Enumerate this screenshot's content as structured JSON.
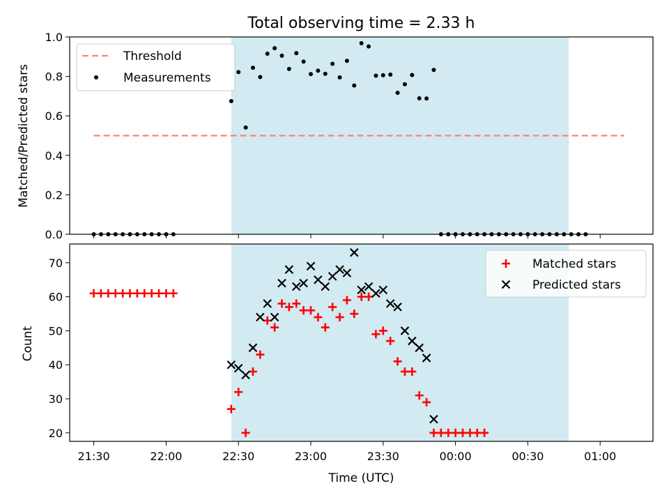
{
  "chart_data": [
    {
      "type": "scatter",
      "title": "Total observing time = 2.33 h",
      "ylabel": "Matched/Predicted stars",
      "xlabel": "",
      "ylim": [
        0,
        1.0
      ],
      "yticks": [
        0.0,
        0.2,
        0.4,
        0.6,
        0.8,
        1.0
      ],
      "ytick_labels": [
        "0.0",
        "0.2",
        "0.4",
        "0.6",
        "0.8",
        "1.0"
      ],
      "x_tick_labels": [
        "21:30",
        "22:00",
        "22:30",
        "23:00",
        "23:30",
        "00:00",
        "00:30",
        "01:00"
      ],
      "shaded_region": {
        "from": "22:27",
        "to": "00:47",
        "color": "#add8e6"
      },
      "legend": {
        "position": "upper left",
        "entries": [
          "Threshold",
          "Measurements"
        ]
      },
      "series": [
        {
          "name": "Threshold",
          "style": "dashed-line",
          "color": "#ff7f7f",
          "x": [
            "21:30",
            "01:10"
          ],
          "values": [
            0.5,
            0.5
          ]
        },
        {
          "name": "Measurements",
          "style": "dot",
          "color": "#000000",
          "x": [
            "21:30",
            "21:33",
            "21:36",
            "21:39",
            "21:42",
            "21:45",
            "21:48",
            "21:51",
            "21:54",
            "21:57",
            "22:00",
            "22:03",
            "22:27",
            "22:30",
            "22:33",
            "22:36",
            "22:39",
            "22:42",
            "22:45",
            "22:48",
            "22:51",
            "22:54",
            "22:57",
            "23:00",
            "23:03",
            "23:06",
            "23:09",
            "23:12",
            "23:15",
            "23:18",
            "23:21",
            "23:24",
            "23:27",
            "23:30",
            "23:33",
            "23:36",
            "23:39",
            "23:42",
            "23:45",
            "23:48",
            "23:51",
            "23:54",
            "23:57",
            "00:00",
            "00:03",
            "00:06",
            "00:09",
            "00:12",
            "00:15",
            "00:18",
            "00:21",
            "00:24",
            "00:27",
            "00:30",
            "00:33",
            "00:36",
            "00:39",
            "00:42",
            "00:45",
            "00:48",
            "00:51",
            "00:54"
          ],
          "values": [
            0,
            0,
            0,
            0,
            0,
            0,
            0,
            0,
            0,
            0,
            0,
            0,
            0.675,
            0.822,
            0.541,
            0.844,
            0.797,
            0.915,
            0.943,
            0.905,
            0.838,
            0.918,
            0.875,
            0.812,
            0.829,
            0.813,
            0.864,
            0.795,
            0.879,
            0.754,
            0.968,
            0.952,
            0.804,
            0.806,
            0.809,
            0.717,
            0.76,
            0.807,
            0.689,
            0.688,
            0.833,
            0,
            0,
            0,
            0,
            0,
            0,
            0,
            0,
            0,
            0,
            0,
            0,
            0,
            0,
            0,
            0,
            0,
            0,
            0,
            0,
            0
          ]
        }
      ]
    },
    {
      "type": "scatter",
      "title": "",
      "ylabel": "Count",
      "xlabel": "Time (UTC)",
      "ylim": [
        17.5,
        75.5
      ],
      "yticks": [
        20,
        30,
        40,
        50,
        60,
        70
      ],
      "ytick_labels": [
        "20",
        "30",
        "40",
        "50",
        "60",
        "70"
      ],
      "x_tick_labels": [
        "21:30",
        "22:00",
        "22:30",
        "23:00",
        "23:30",
        "00:00",
        "00:30",
        "01:00"
      ],
      "shaded_region": {
        "from": "22:27",
        "to": "00:47",
        "color": "#add8e6"
      },
      "legend": {
        "position": "upper right",
        "entries": [
          "Matched stars",
          "Predicted stars"
        ]
      },
      "series": [
        {
          "name": "Matched stars",
          "marker": "+",
          "color": "#ff0000",
          "x": [
            "21:30",
            "21:33",
            "21:36",
            "21:39",
            "21:42",
            "21:45",
            "21:48",
            "21:51",
            "21:54",
            "21:57",
            "22:00",
            "22:03",
            "22:27",
            "22:30",
            "22:33",
            "22:36",
            "22:39",
            "22:42",
            "22:45",
            "22:48",
            "22:51",
            "22:54",
            "22:57",
            "23:00",
            "23:03",
            "23:06",
            "23:09",
            "23:12",
            "23:15",
            "23:18",
            "23:21",
            "23:24",
            "23:27",
            "23:30",
            "23:33",
            "23:36",
            "23:39",
            "23:42",
            "23:45",
            "23:48",
            "23:51",
            "23:54",
            "23:57",
            "00:00",
            "00:03",
            "00:06",
            "00:09",
            "00:12"
          ],
          "values": [
            61,
            61,
            61,
            61,
            61,
            61,
            61,
            61,
            61,
            61,
            61,
            61,
            27,
            32,
            20,
            38,
            43,
            53,
            51,
            58,
            57,
            58,
            56,
            56,
            54,
            51,
            57,
            54,
            59,
            55,
            60,
            60,
            49,
            50,
            47,
            41,
            38,
            38,
            31,
            29,
            20,
            20,
            20,
            20,
            20,
            20,
            20,
            20
          ]
        },
        {
          "name": "Predicted stars",
          "marker": "x",
          "color": "#000000",
          "x": [
            "22:27",
            "22:30",
            "22:33",
            "22:36",
            "22:39",
            "22:42",
            "22:45",
            "22:48",
            "22:51",
            "22:54",
            "22:57",
            "23:00",
            "23:03",
            "23:06",
            "23:09",
            "23:12",
            "23:15",
            "23:18",
            "23:21",
            "23:24",
            "23:27",
            "23:30",
            "23:33",
            "23:36",
            "23:39",
            "23:42",
            "23:45",
            "23:48",
            "23:51"
          ],
          "values": [
            40,
            39,
            37,
            45,
            54,
            58,
            54,
            64,
            68,
            63,
            64,
            69,
            65,
            63,
            66,
            68,
            67,
            73,
            62,
            63,
            61,
            62,
            58,
            57,
            50,
            47,
            45,
            42,
            24
          ]
        }
      ]
    }
  ]
}
